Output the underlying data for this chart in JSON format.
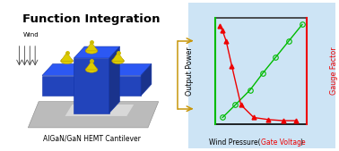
{
  "left_panel": {
    "title": "Function Integration",
    "subtitle": "AlGaN/GaN HEMT Cantilever",
    "wind_label": "Wind",
    "bg_color": "#ffffff",
    "border_color": "#000000"
  },
  "right_panel": {
    "bg_color": "#cde4f5",
    "border_color": "#5599cc"
  },
  "green_line": {
    "x": [
      0.08,
      0.22,
      0.38,
      0.52,
      0.66,
      0.8,
      0.95
    ],
    "y": [
      0.06,
      0.18,
      0.32,
      0.48,
      0.63,
      0.78,
      0.94
    ],
    "color": "#00bb00",
    "marker": "o",
    "markersize": 4,
    "linewidth": 1.0
  },
  "red_line": {
    "x": [
      0.05,
      0.08,
      0.12,
      0.18,
      0.28,
      0.42,
      0.58,
      0.74,
      0.88
    ],
    "y": [
      0.93,
      0.88,
      0.78,
      0.55,
      0.18,
      0.06,
      0.04,
      0.03,
      0.03
    ],
    "color": "#ee0000",
    "marker": "^",
    "markersize": 3.5,
    "linewidth": 1.0
  },
  "connector_color": "#c8960a",
  "ylabel_left": "Output Power",
  "ylabel_right": "Gauge Factor",
  "xlabel_black1": "Wind Pressure(",
  "xlabel_red": "Gate Voltage",
  "xlabel_black2": ")"
}
